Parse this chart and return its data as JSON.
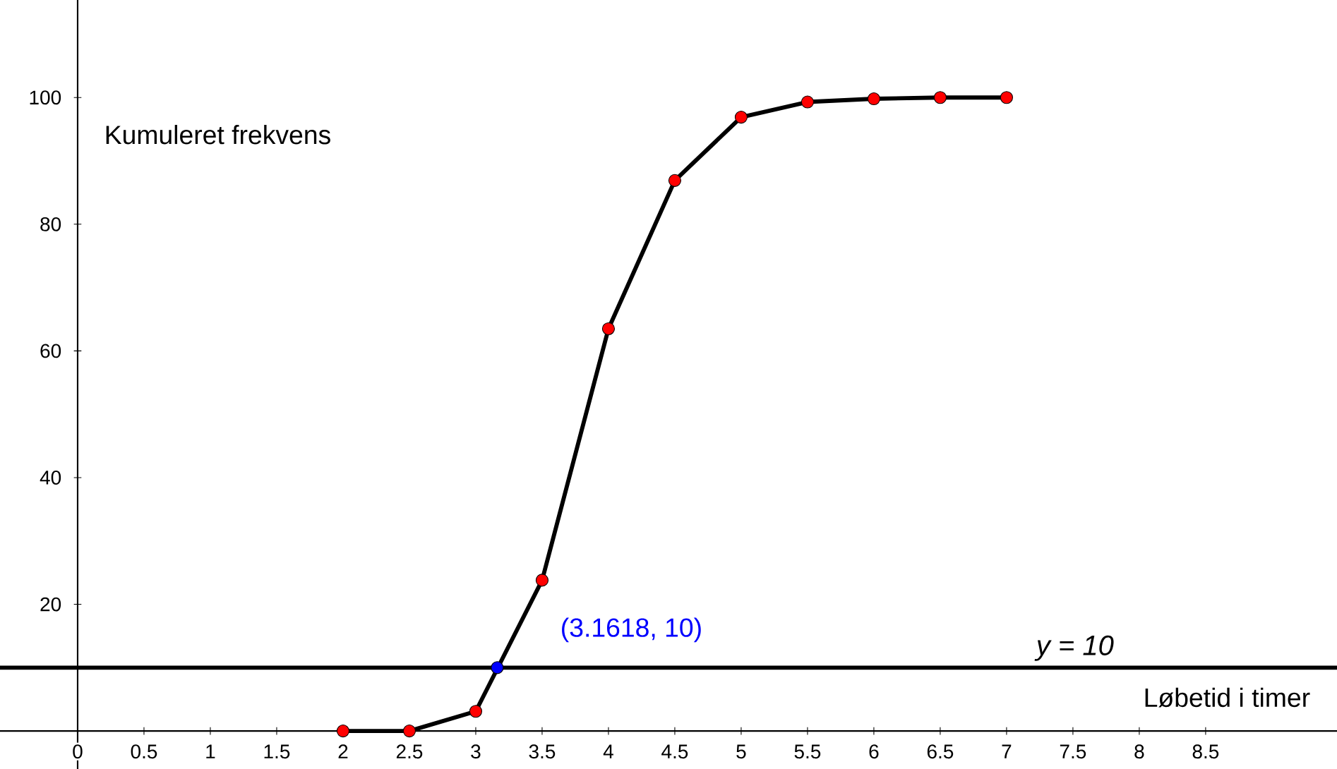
{
  "chart_data": {
    "type": "line",
    "xlabel": "Løbetid i timer",
    "ylabel": "Kumuleret frekvens",
    "xlim": [
      -0.585,
      9.49
    ],
    "ylim": [
      -6,
      115.4
    ],
    "xticks": [
      {
        "value": 0,
        "label": "0"
      },
      0.5,
      1,
      1.5,
      2,
      2.5,
      3,
      3.5,
      4,
      4.5,
      5,
      5.5,
      6,
      6.5,
      7,
      7.5,
      8,
      8.5
    ],
    "yticks": [
      20,
      40,
      60,
      80,
      100
    ],
    "marker": "circle",
    "grid": false,
    "series": [
      {
        "color": "#000000",
        "colors": [
          "#ff0000",
          "#ff0000",
          "#ff0000",
          "#ff0000",
          "#ff0000",
          "#ff0000",
          "#ff0000",
          "#ff0000",
          "#ff0000",
          "#ff0000",
          "#ff0000"
        ],
        "x": [
          2,
          2.5,
          3,
          3.5,
          4,
          4.5,
          5,
          5.5,
          6,
          6.5,
          7
        ],
        "values": [
          0,
          0,
          3.1,
          23.8,
          63.5,
          86.9,
          96.9,
          99.3,
          99.8,
          100,
          100
        ]
      },
      {
        "type": "scatter",
        "color": "#0000ff",
        "x": [
          3.1618
        ],
        "values": [
          10
        ]
      }
    ],
    "ref_lines": [
      {
        "axis": "y",
        "value": 10,
        "label": "y = 10",
        "color": "#000000"
      }
    ],
    "annotations": [
      {
        "text": "(3.1618, 10)",
        "x": 3.1618,
        "y": 10
      }
    ]
  }
}
